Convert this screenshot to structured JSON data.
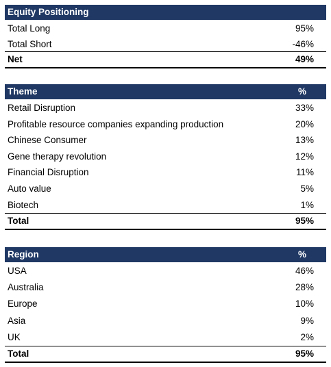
{
  "tables": [
    {
      "header": {
        "label": "Equity Positioning"
      },
      "rows": [
        [
          "Total Long",
          "95%"
        ],
        [
          "Total Short",
          "-46%"
        ]
      ],
      "total": [
        "Net",
        "49%"
      ]
    },
    {
      "header": {
        "label": "Theme",
        "value": "%"
      },
      "rows": [
        [
          "Retail Disruption",
          "33%"
        ],
        [
          "Profitable resource companies expanding production",
          "20%"
        ],
        [
          "Chinese Consumer",
          "13%"
        ],
        [
          "Gene therapy revolution",
          "12%"
        ],
        [
          "Financial Disruption",
          "11%"
        ],
        [
          "Auto value",
          "5%"
        ],
        [
          "Biotech",
          "1%"
        ]
      ],
      "total": [
        "Total",
        "95%"
      ]
    },
    {
      "header": {
        "label": "Region",
        "value": "%"
      },
      "rows": [
        [
          "USA",
          "46%"
        ],
        [
          "Australia",
          "28%"
        ],
        [
          "Europe",
          "10%"
        ],
        [
          "Asia",
          "9%"
        ],
        [
          "UK",
          "2%"
        ]
      ],
      "total": [
        "Total",
        "95%"
      ]
    }
  ]
}
